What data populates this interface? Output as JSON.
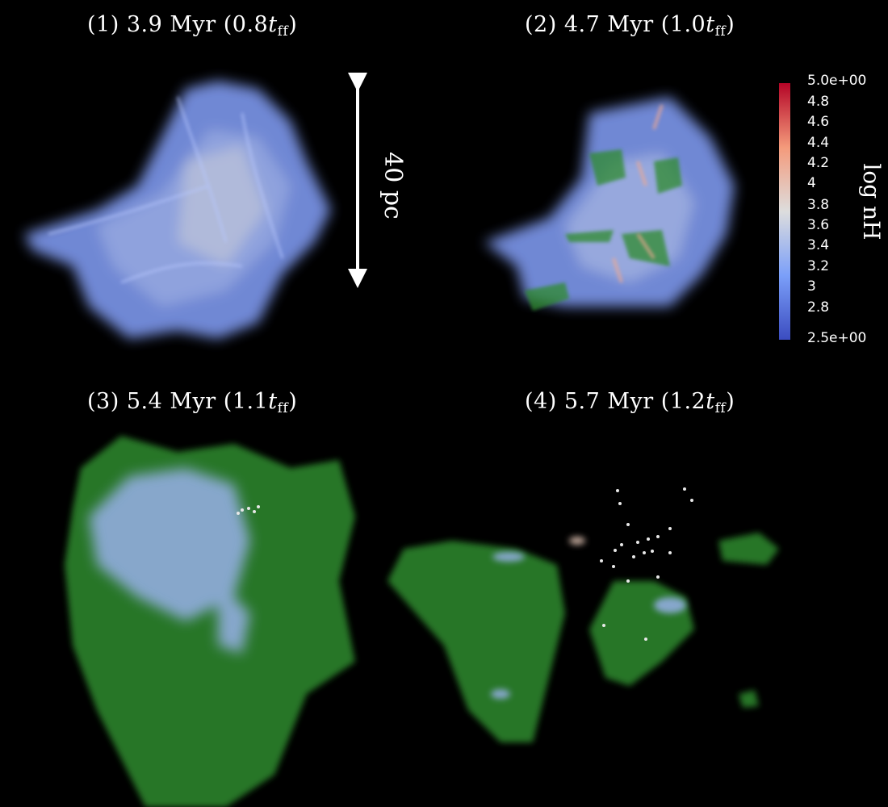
{
  "panels": [
    {
      "label": "(1) 3.9 Myr",
      "tff_coef": "(0.8",
      "tff_sym": "t",
      "tff_sub": "ff",
      "close": ")"
    },
    {
      "label": "(2) 4.7 Myr",
      "tff_coef": "(1.0",
      "tff_sym": "t",
      "tff_sub": "ff",
      "close": ")"
    },
    {
      "label": "(3) 5.4 Myr",
      "tff_coef": "(1.1",
      "tff_sym": "t",
      "tff_sub": "ff",
      "close": ")"
    },
    {
      "label": "(4) 5.7 Myr",
      "tff_coef": "(1.2",
      "tff_sym": "t",
      "tff_sub": "ff",
      "close": ")"
    }
  ],
  "scale_bar": {
    "label": "40 pc"
  },
  "colorbar": {
    "title": "log nH",
    "ticks": [
      "5.0e+00",
      "4.8",
      "4.6",
      "4.4",
      "4.2",
      "4",
      "3.8",
      "3.6",
      "3.4",
      "3.2",
      "3",
      "2.8",
      "2.5e+00"
    ],
    "colors": {
      "low": "#3b4cc0",
      "mid": "#dddddd",
      "high": "#b40426"
    }
  },
  "colors": {
    "gas": "#8faaff",
    "isosurface": "#2e8b2e",
    "stars": "#e8e8e8"
  }
}
